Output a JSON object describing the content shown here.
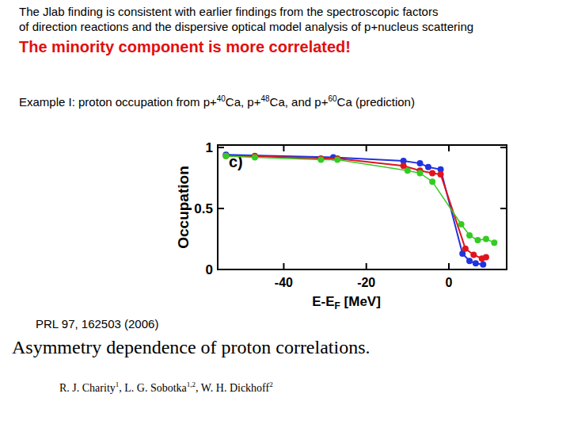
{
  "slide": {
    "intro": [
      "The Jlab finding is consistent with earlier findings from the spectroscopic factors",
      "of direction reactions and the dispersive optical model analysis of p+nucleus scattering"
    ],
    "headline": "The minority component is more correlated!",
    "example": [
      {
        "text": "Example I: proton occupation from "
      },
      {
        "text": "p+"
      },
      {
        "sup": "40"
      },
      {
        "text": "Ca, p+"
      },
      {
        "sup": "48"
      },
      {
        "text": "Ca, and p+"
      },
      {
        "sup": "60"
      },
      {
        "text": "Ca (prediction)"
      }
    ],
    "reference": "PRL 97, 162503 (2006)",
    "paper_title": "Asymmetry dependence of proton correlations.",
    "authors": [
      {
        "text": "R. J. Charity"
      },
      {
        "sup": "1"
      },
      {
        "text": ", L. G. Sobotka"
      },
      {
        "sup": "1,2"
      },
      {
        "text": ", W. H. Dickhoff"
      },
      {
        "sup": "2"
      }
    ]
  },
  "chart_data": {
    "type": "line",
    "annotations": [
      "c)"
    ],
    "ylabel": "Occupation",
    "xlabel": [
      {
        "text": "E-E"
      },
      {
        "sub": "F"
      },
      {
        "text": " [MeV]"
      }
    ],
    "xlim": [
      -56,
      14
    ],
    "ylim": [
      0,
      1.02
    ],
    "xticks": [
      -40,
      -20,
      0
    ],
    "yticks": [
      0,
      0.5,
      1
    ],
    "marker": "circle",
    "series": [
      {
        "color": "#2233dd",
        "x": [
          -54,
          -28,
          -11,
          -7,
          -5,
          -2,
          3.3,
          5,
          6.5,
          8.3
        ],
        "values": [
          0.94,
          0.92,
          0.89,
          0.87,
          0.84,
          0.82,
          0.13,
          0.07,
          0.05,
          0.04
        ]
      },
      {
        "color": "#e0141e",
        "x": [
          -54,
          -47,
          -31,
          -27,
          -11,
          -7,
          -4,
          -2,
          4,
          6,
          8,
          9
        ],
        "values": [
          0.93,
          0.93,
          0.91,
          0.91,
          0.85,
          0.81,
          0.79,
          0.78,
          0.17,
          0.12,
          0.09,
          0.1
        ]
      },
      {
        "color": "#33cc22",
        "x": [
          -54,
          -47,
          -31,
          -27,
          -10,
          -7,
          -4,
          3,
          5,
          7,
          9,
          11
        ],
        "values": [
          0.93,
          0.92,
          0.9,
          0.9,
          0.81,
          0.79,
          0.72,
          0.37,
          0.28,
          0.24,
          0.25,
          0.22
        ]
      }
    ]
  }
}
